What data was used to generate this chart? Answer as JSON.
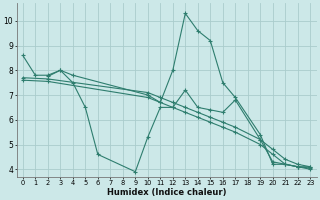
{
  "xlabel": "Humidex (Indice chaleur)",
  "bg_color": "#cce8e8",
  "grid_color": "#aacccc",
  "line_color": "#2e7d6e",
  "xlim": [
    -0.5,
    23.5
  ],
  "ylim": [
    3.7,
    10.7
  ],
  "yticks": [
    4,
    5,
    6,
    7,
    8,
    9,
    10
  ],
  "xticks": [
    0,
    1,
    2,
    3,
    4,
    5,
    6,
    7,
    8,
    9,
    10,
    11,
    12,
    13,
    14,
    15,
    16,
    17,
    18,
    19,
    20,
    21,
    22,
    23
  ],
  "series": [
    {
      "x": [
        0,
        1,
        2,
        3,
        4,
        10,
        11,
        12,
        13,
        14,
        15,
        16,
        17,
        19,
        20,
        21,
        22,
        23
      ],
      "y": [
        8.6,
        7.8,
        7.8,
        8.0,
        7.8,
        7.0,
        6.7,
        8.0,
        10.3,
        9.6,
        9.2,
        7.5,
        6.9,
        5.4,
        4.2,
        4.2,
        4.1,
        4.1
      ]
    },
    {
      "x": [
        2,
        3,
        4,
        5,
        6,
        9,
        10,
        11,
        12,
        13,
        14,
        15,
        16,
        17,
        19,
        20,
        21,
        22,
        23
      ],
      "y": [
        7.75,
        8.0,
        7.5,
        6.5,
        4.6,
        3.9,
        5.3,
        6.5,
        6.5,
        7.2,
        6.5,
        6.4,
        6.3,
        6.8,
        5.2,
        4.3,
        4.2,
        4.1,
        4.05
      ]
    },
    {
      "x": [
        0,
        2,
        10,
        11,
        12,
        13,
        14,
        15,
        16,
        17,
        19,
        20,
        21,
        22,
        23
      ],
      "y": [
        7.7,
        7.65,
        7.1,
        6.9,
        6.7,
        6.5,
        6.3,
        6.1,
        5.9,
        5.7,
        5.2,
        4.8,
        4.4,
        4.2,
        4.1
      ]
    },
    {
      "x": [
        0,
        2,
        10,
        11,
        12,
        13,
        14,
        15,
        16,
        17,
        19,
        20,
        21,
        22,
        23
      ],
      "y": [
        7.6,
        7.55,
        6.9,
        6.7,
        6.5,
        6.3,
        6.1,
        5.9,
        5.7,
        5.5,
        5.0,
        4.6,
        4.2,
        4.1,
        4.0
      ]
    }
  ]
}
